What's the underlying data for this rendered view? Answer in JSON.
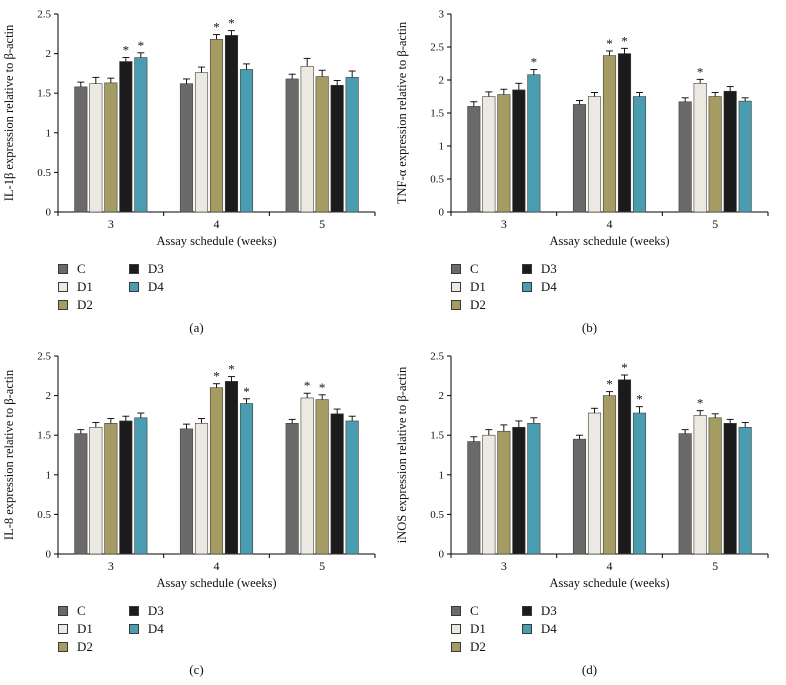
{
  "figure": {
    "background": "#ffffff",
    "axis_color": "#000000",
    "colors": {
      "C": "#6a6a6a",
      "D1": "#ece9e2",
      "D2": "#a49c63",
      "D3": "#1b1b1b",
      "D4": "#4a9cb0"
    },
    "legend_columns": [
      [
        "C",
        "D1",
        "D2"
      ],
      [
        "D3",
        "D4"
      ]
    ]
  },
  "chart_data": [
    {
      "type": "bar",
      "panel": "(a)",
      "xlabel": "Assay schedule (weeks)",
      "ylabel": "IL-1β expression relative to β-actin",
      "categories": [
        "3",
        "4",
        "5"
      ],
      "ylim": [
        0,
        2.5
      ],
      "yticks": [
        "0",
        "0.5",
        "1",
        "1.5",
        "2",
        "2.5"
      ],
      "legend_position": "bottom-left",
      "grid": false,
      "series": [
        {
          "name": "C",
          "values": [
            1.58,
            1.62,
            1.68
          ],
          "errors": [
            0.06,
            0.06,
            0.06
          ],
          "sig": [
            false,
            false,
            false
          ]
        },
        {
          "name": "D1",
          "values": [
            1.62,
            1.76,
            1.84
          ],
          "errors": [
            0.08,
            0.07,
            0.1
          ],
          "sig": [
            false,
            false,
            false
          ]
        },
        {
          "name": "D2",
          "values": [
            1.63,
            2.18,
            1.71
          ],
          "errors": [
            0.06,
            0.06,
            0.08
          ],
          "sig": [
            false,
            true,
            false
          ]
        },
        {
          "name": "D3",
          "values": [
            1.9,
            2.23,
            1.6
          ],
          "errors": [
            0.05,
            0.06,
            0.06
          ],
          "sig": [
            true,
            true,
            false
          ]
        },
        {
          "name": "D4",
          "values": [
            1.95,
            1.8,
            1.7
          ],
          "errors": [
            0.06,
            0.07,
            0.08
          ],
          "sig": [
            true,
            false,
            false
          ]
        }
      ]
    },
    {
      "type": "bar",
      "panel": "(b)",
      "xlabel": "Assay schedule (weeks)",
      "ylabel": "TNF-α expression relative to β-actin",
      "categories": [
        "3",
        "4",
        "5"
      ],
      "ylim": [
        0,
        3
      ],
      "yticks": [
        "0",
        "0.5",
        "1",
        "1.5",
        "2",
        "2.5",
        "3"
      ],
      "legend_position": "bottom-left",
      "grid": false,
      "series": [
        {
          "name": "C",
          "values": [
            1.6,
            1.63,
            1.67
          ],
          "errors": [
            0.07,
            0.06,
            0.06
          ],
          "sig": [
            false,
            false,
            false
          ]
        },
        {
          "name": "D1",
          "values": [
            1.75,
            1.75,
            1.95
          ],
          "errors": [
            0.07,
            0.06,
            0.06
          ],
          "sig": [
            false,
            false,
            true
          ]
        },
        {
          "name": "D2",
          "values": [
            1.78,
            2.37,
            1.75
          ],
          "errors": [
            0.08,
            0.07,
            0.06
          ],
          "sig": [
            false,
            true,
            false
          ]
        },
        {
          "name": "D3",
          "values": [
            1.85,
            2.4,
            1.83
          ],
          "errors": [
            0.1,
            0.08,
            0.07
          ],
          "sig": [
            false,
            true,
            false
          ]
        },
        {
          "name": "D4",
          "values": [
            2.08,
            1.75,
            1.68
          ],
          "errors": [
            0.08,
            0.06,
            0.05
          ],
          "sig": [
            true,
            false,
            false
          ]
        }
      ]
    },
    {
      "type": "bar",
      "panel": "(c)",
      "xlabel": "Assay schedule (weeks)",
      "ylabel": "IL-8 expression relative to β-actin",
      "categories": [
        "3",
        "4",
        "5"
      ],
      "ylim": [
        0,
        2.5
      ],
      "yticks": [
        "0",
        "0.5",
        "1",
        "1.5",
        "2",
        "2.5"
      ],
      "legend_position": "bottom-left",
      "grid": false,
      "series": [
        {
          "name": "C",
          "values": [
            1.52,
            1.58,
            1.65
          ],
          "errors": [
            0.05,
            0.06,
            0.05
          ],
          "sig": [
            false,
            false,
            false
          ]
        },
        {
          "name": "D1",
          "values": [
            1.6,
            1.65,
            1.97
          ],
          "errors": [
            0.06,
            0.06,
            0.06
          ],
          "sig": [
            false,
            false,
            true
          ]
        },
        {
          "name": "D2",
          "values": [
            1.65,
            2.1,
            1.95
          ],
          "errors": [
            0.06,
            0.05,
            0.06
          ],
          "sig": [
            false,
            true,
            true
          ]
        },
        {
          "name": "D3",
          "values": [
            1.68,
            2.18,
            1.77
          ],
          "errors": [
            0.06,
            0.06,
            0.06
          ],
          "sig": [
            false,
            true,
            false
          ]
        },
        {
          "name": "D4",
          "values": [
            1.72,
            1.9,
            1.68
          ],
          "errors": [
            0.06,
            0.06,
            0.06
          ],
          "sig": [
            false,
            true,
            false
          ]
        }
      ]
    },
    {
      "type": "bar",
      "panel": "(d)",
      "xlabel": "Assay schedule (weeks)",
      "ylabel": "iNOS expression relative to β-actin",
      "categories": [
        "3",
        "4",
        "5"
      ],
      "ylim": [
        0,
        2.5
      ],
      "yticks": [
        "0",
        "0.5",
        "1",
        "1.5",
        "2",
        "2.5"
      ],
      "legend_position": "bottom-left",
      "grid": false,
      "series": [
        {
          "name": "C",
          "values": [
            1.42,
            1.45,
            1.52
          ],
          "errors": [
            0.06,
            0.05,
            0.05
          ],
          "sig": [
            false,
            false,
            false
          ]
        },
        {
          "name": "D1",
          "values": [
            1.5,
            1.78,
            1.75
          ],
          "errors": [
            0.07,
            0.06,
            0.06
          ],
          "sig": [
            false,
            false,
            true
          ]
        },
        {
          "name": "D2",
          "values": [
            1.55,
            2.0,
            1.72
          ],
          "errors": [
            0.08,
            0.05,
            0.05
          ],
          "sig": [
            false,
            true,
            false
          ]
        },
        {
          "name": "D3",
          "values": [
            1.6,
            2.2,
            1.65
          ],
          "errors": [
            0.08,
            0.06,
            0.05
          ],
          "sig": [
            false,
            true,
            false
          ]
        },
        {
          "name": "D4",
          "values": [
            1.65,
            1.78,
            1.6
          ],
          "errors": [
            0.07,
            0.08,
            0.06
          ],
          "sig": [
            false,
            true,
            false
          ]
        }
      ]
    }
  ]
}
